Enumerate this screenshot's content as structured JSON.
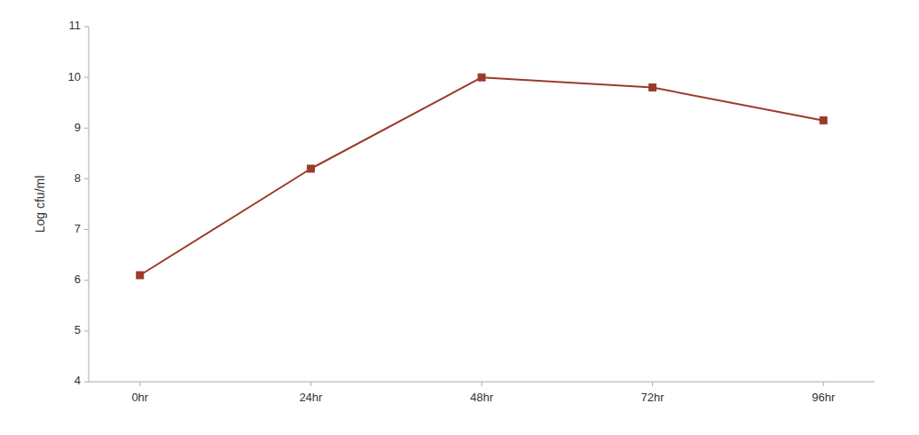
{
  "chart_data": {
    "type": "line",
    "categories": [
      "0hr",
      "24hr",
      "48hr",
      "72hr",
      "96hr"
    ],
    "values": [
      6.1,
      8.2,
      10.0,
      9.8,
      9.15
    ],
    "color": "#9B3A2A",
    "marker": "square",
    "y_label": "Log cfu/ml",
    "ylim": [
      4,
      11
    ],
    "yticks": [
      4,
      5,
      6,
      7,
      8,
      9,
      10,
      11
    ],
    "grid": false
  }
}
